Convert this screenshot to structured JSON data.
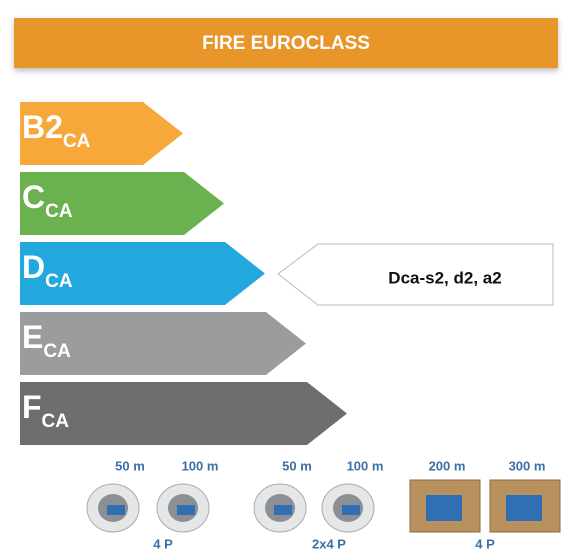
{
  "header": {
    "title": "FIRE EUROCLASS"
  },
  "classes": [
    {
      "main": "B2",
      "sub": "CA",
      "color": "#f6a83a"
    },
    {
      "main": "C",
      "sub": "CA",
      "color": "#6ab24f"
    },
    {
      "main": "D",
      "sub": "CA",
      "color": "#23a8de"
    },
    {
      "main": "E",
      "sub": "CA",
      "color": "#9b9c9e"
    },
    {
      "main": "F",
      "sub": "CA",
      "color": "#6d6e70"
    }
  ],
  "indicator": {
    "label": "Dca-s2, d2, a2"
  },
  "products": [
    {
      "items": [
        "50 m",
        "100 m"
      ],
      "label": "4 P",
      "kind": "reel"
    },
    {
      "items": [
        "50 m",
        "100 m"
      ],
      "label": "2x4 P",
      "kind": "reel"
    },
    {
      "items": [
        "200 m",
        "300 m"
      ],
      "label": "4 P",
      "kind": "box"
    }
  ]
}
